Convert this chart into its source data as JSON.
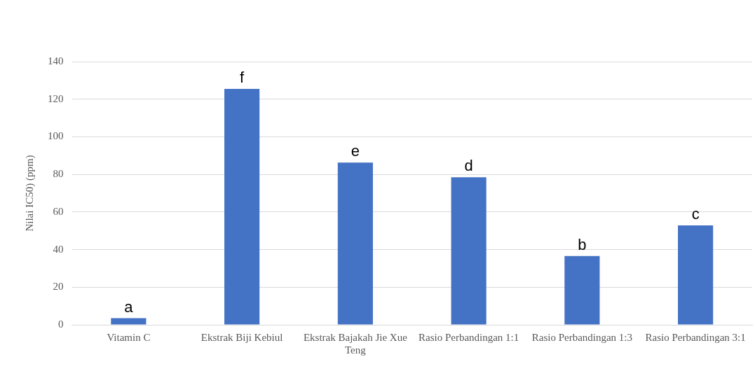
{
  "chart_data": {
    "type": "bar",
    "ylabel": "Nilai IC50) (ppm)",
    "categories": [
      "Vitamin C",
      "Ekstrak Biji Kebiul",
      "Ekstrak Bajakah Jie Xue Teng",
      "Rasio Perbandingan 1:1",
      "Rasio Perbandingan 1:3",
      "Rasio Perbandingan 3:1"
    ],
    "values": [
      3.5,
      125.5,
      86.3,
      78.5,
      36.6,
      52.9
    ],
    "color": "#4472c4",
    "ylim": [
      0,
      140
    ],
    "yticks": [
      0,
      20,
      40,
      60,
      80,
      100,
      120,
      140
    ],
    "grid": "y",
    "legend": false,
    "annotations": [
      {
        "text": "a",
        "x": "Vitamin C",
        "y": 3.5
      },
      {
        "text": "f",
        "x": "Ekstrak Biji Kebiul",
        "y": 125.5
      },
      {
        "text": "e",
        "x": "Ekstrak Bajakah Jie Xue Teng",
        "y": 86.3
      },
      {
        "text": "d",
        "x": "Rasio Perbandingan 1:1",
        "y": 78.5
      },
      {
        "text": "b",
        "x": "Rasio Perbandingan 1:3",
        "y": 36.6
      },
      {
        "text": "c",
        "x": "Rasio Perbandingan 3:1",
        "y": 52.9
      }
    ]
  }
}
